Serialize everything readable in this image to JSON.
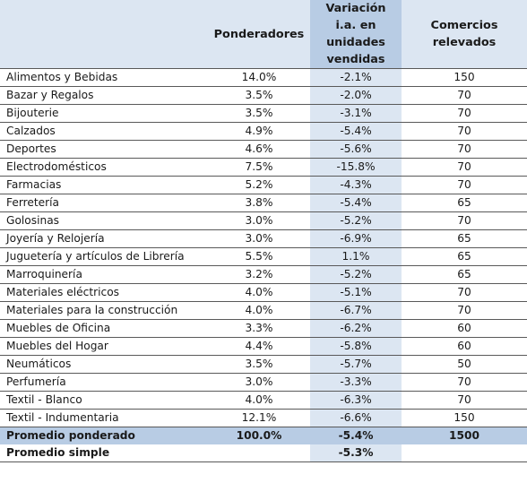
{
  "header": {
    "col1": "",
    "col2": "Ponderadores",
    "col3_lines": [
      "Variación",
      "i.a. en",
      "unidades",
      "vendidas"
    ],
    "col4_lines": [
      "Comercios",
      "relevados"
    ]
  },
  "rows": [
    {
      "name": "Alimentos y Bebidas",
      "weight": "14.0%",
      "variation": "-2.1%",
      "stores": "150"
    },
    {
      "name": "Bazar y Regalos",
      "weight": "3.5%",
      "variation": "-2.0%",
      "stores": "70"
    },
    {
      "name": "Bijouterie",
      "weight": "3.5%",
      "variation": "-3.1%",
      "stores": "70"
    },
    {
      "name": "Calzados",
      "weight": "4.9%",
      "variation": "-5.4%",
      "stores": "70"
    },
    {
      "name": "Deportes",
      "weight": "4.6%",
      "variation": "-5.6%",
      "stores": "70"
    },
    {
      "name": "Electrodomésticos",
      "weight": "7.5%",
      "variation": "-15.8%",
      "stores": "70"
    },
    {
      "name": "Farmacias",
      "weight": "5.2%",
      "variation": "-4.3%",
      "stores": "70"
    },
    {
      "name": "Ferretería",
      "weight": "3.8%",
      "variation": "-5.4%",
      "stores": "65"
    },
    {
      "name": "Golosinas",
      "weight": "3.0%",
      "variation": "-5.2%",
      "stores": "70"
    },
    {
      "name": "Joyería y Relojería",
      "weight": "3.0%",
      "variation": "-6.9%",
      "stores": "65"
    },
    {
      "name": "Juguetería y artículos de Librería",
      "weight": "5.5%",
      "variation": "1.1%",
      "stores": "65",
      "tall": true
    },
    {
      "name": "Marroquinería",
      "weight": "3.2%",
      "variation": "-5.2%",
      "stores": "65"
    },
    {
      "name": "Materiales eléctricos",
      "weight": "4.0%",
      "variation": "-5.1%",
      "stores": "70"
    },
    {
      "name": "Materiales para la construcción",
      "weight": "4.0%",
      "variation": "-6.7%",
      "stores": "70"
    },
    {
      "name": "Muebles de Oficina",
      "weight": "3.3%",
      "variation": "-6.2%",
      "stores": "60"
    },
    {
      "name": "Muebles del Hogar",
      "weight": "4.4%",
      "variation": "-5.8%",
      "stores": "60"
    },
    {
      "name": "Neumáticos",
      "weight": "3.5%",
      "variation": "-5.7%",
      "stores": "50"
    },
    {
      "name": "Perfumería",
      "weight": "3.0%",
      "variation": "-3.3%",
      "stores": "70"
    },
    {
      "name": "Textil - Blanco",
      "weight": "4.0%",
      "variation": "-6.3%",
      "stores": "70"
    },
    {
      "name": "Textil - Indumentaria",
      "weight": "12.1%",
      "variation": "-6.6%",
      "stores": "150"
    }
  ],
  "weighted_average": {
    "name": "Promedio ponderado",
    "weight": "100.0%",
    "variation": "-5.4%",
    "stores": "1500"
  },
  "simple_average": {
    "name": "Promedio simple",
    "variation": "-5.3%"
  },
  "colors": {
    "header_light": "#dce6f2",
    "header_dark": "#b8cce4",
    "variation_column": "#dce6f2",
    "summary_row": "#b8cce4"
  }
}
